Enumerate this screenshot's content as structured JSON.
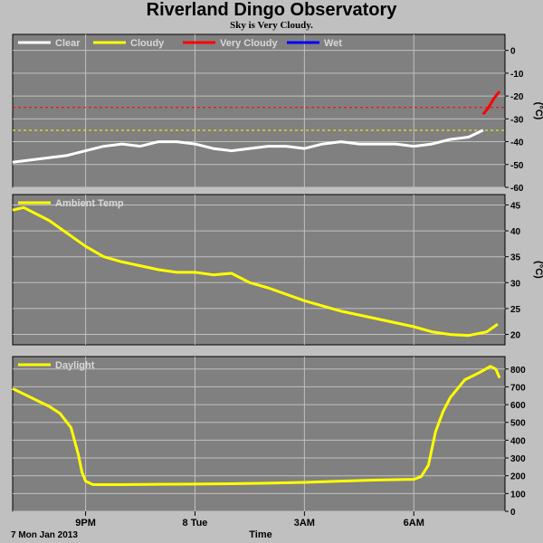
{
  "title": "Riverland Dingo Observatory",
  "subtitle": "Sky is Very Cloudy.",
  "x_axis": {
    "date_label": "7 Mon Jan 2013",
    "title": "Time",
    "tick_labels": [
      "9PM",
      "8 Tue",
      "3AM",
      "6AM"
    ]
  },
  "colors": {
    "panel": "#808080",
    "grid": "#c0c0c0",
    "clear": "#ffffff",
    "cloudy": "#ffff00",
    "very_cloudy": "#ff0000",
    "wet": "#0000ff"
  },
  "chart_data": [
    {
      "type": "line",
      "name": "sky",
      "x_unit": "hours since 7 Mon Jan 2013 18:00",
      "ylabel": "(°C)",
      "ylim": [
        -60,
        7
      ],
      "yticks": [
        0,
        -10,
        -20,
        -30,
        -40,
        -50,
        -60
      ],
      "grid": true,
      "legend": [
        "Clear",
        "Cloudy",
        "Very Cloudy",
        "Wet"
      ],
      "thresholds": [
        {
          "label": "Very Cloudy",
          "value": -25,
          "color": "#ff0000"
        },
        {
          "label": "Cloudy",
          "value": -35,
          "color": "#ffff00"
        }
      ],
      "series": [
        {
          "name": "Clear",
          "x": [
            0,
            0.5,
            1,
            1.5,
            2,
            2.5,
            3,
            3.5,
            4,
            4.5,
            5,
            5.5,
            6,
            6.5,
            7,
            7.5,
            8,
            8.5,
            9,
            9.5,
            10,
            10.5,
            11,
            11.5,
            12,
            12.5,
            12.9
          ],
          "values": [
            -49,
            -48,
            -47,
            -46,
            -44,
            -42,
            -41,
            -42,
            -40,
            -40,
            -41,
            -43,
            -44,
            -43,
            -42,
            -42,
            -43,
            -41,
            -40,
            -41,
            -41,
            -41,
            -42,
            -41,
            -39,
            -38,
            -35
          ]
        },
        {
          "name": "Very Cloudy",
          "x": [
            12.9,
            13.05,
            13.2,
            13.35
          ],
          "values": [
            -28,
            -25,
            -21,
            -18
          ]
        }
      ]
    },
    {
      "type": "line",
      "name": "ambient",
      "ylabel": "(°C)",
      "ylim": [
        18,
        47
      ],
      "yticks": [
        20,
        25,
        30,
        35,
        40,
        45
      ],
      "grid": true,
      "legend": [
        "Ambient Temp"
      ],
      "series": [
        {
          "name": "Ambient Temp",
          "x": [
            0,
            0.3,
            1,
            2,
            2.5,
            3,
            4,
            4.5,
            5,
            5.5,
            6,
            6.5,
            7,
            8,
            9,
            10,
            11,
            11.5,
            12,
            12.5,
            13,
            13.3
          ],
          "values": [
            44,
            44.5,
            42,
            37,
            35,
            34,
            32.5,
            32,
            32,
            31.5,
            31.8,
            30,
            29,
            26.5,
            24.5,
            23,
            21.5,
            20.5,
            20,
            19.8,
            20.5,
            22
          ]
        }
      ]
    },
    {
      "type": "line",
      "name": "daylight",
      "ylim": [
        0,
        870
      ],
      "yticks": [
        0,
        100,
        200,
        300,
        400,
        500,
        600,
        700,
        800
      ],
      "grid": true,
      "legend": [
        "Daylight"
      ],
      "series": [
        {
          "name": "Daylight",
          "x": [
            0,
            0.5,
            1,
            1.3,
            1.6,
            1.8,
            1.9,
            2.0,
            2.2,
            3,
            4,
            5,
            6,
            7,
            8,
            9,
            10,
            10.5,
            11,
            11.2,
            11.4,
            11.6,
            11.8,
            12,
            12.4,
            12.8,
            13.1,
            13.25,
            13.35
          ],
          "values": [
            690,
            640,
            590,
            550,
            470,
            320,
            220,
            170,
            150,
            150,
            152,
            153,
            155,
            158,
            163,
            170,
            176,
            178,
            180,
            195,
            260,
            450,
            560,
            640,
            740,
            780,
            815,
            800,
            750
          ]
        }
      ]
    }
  ]
}
